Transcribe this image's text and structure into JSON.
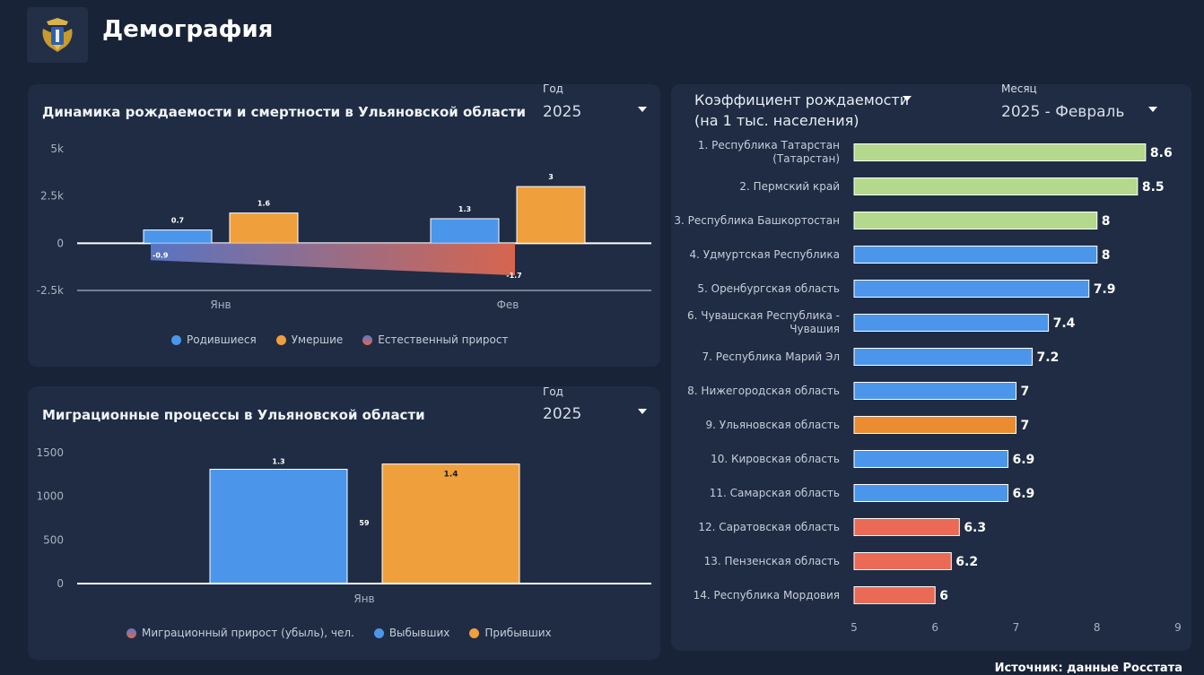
{
  "header": {
    "title": "Демография"
  },
  "colors": {
    "born": "#4b96ea",
    "died": "#efa03c",
    "green": "#b4d88c",
    "blue": "#4b96ea",
    "orange": "#ea8c2f",
    "red": "#ea6a56"
  },
  "panel1": {
    "title": "Динамика рождаемости и смертности в Ульяновской области",
    "filter_label": "Год",
    "filter_value": "2025",
    "legend": [
      "Родившиеся",
      "Умершие",
      "Естественный прирост"
    ],
    "chart_data": {
      "type": "bar",
      "categories": [
        "Янв",
        "Фев"
      ],
      "series": [
        {
          "name": "Родившиеся",
          "values": [
            0.7,
            1.3
          ],
          "labels": [
            "0.7",
            "1.3"
          ]
        },
        {
          "name": "Умершие",
          "values": [
            1.6,
            3.0
          ],
          "labels": [
            "1.6",
            "3"
          ]
        },
        {
          "name": "Естественный прирост",
          "values": [
            -0.9,
            -1.7
          ],
          "labels": [
            "-0.9",
            "-1.7"
          ]
        }
      ],
      "y_ticks": [
        "5k",
        "2.5k",
        "0",
        "-2.5k"
      ],
      "ylim": [
        -2.5,
        5
      ]
    }
  },
  "panel2": {
    "title": "Миграционные процессы в Ульяновской области",
    "filter_label": "Год",
    "filter_value": "2025",
    "legend": [
      "Миграционный прирост (убыль), чел.",
      "Выбывших",
      "Прибывших"
    ],
    "chart_data": {
      "type": "bar",
      "categories": [
        "Янв"
      ],
      "series": [
        {
          "name": "Выбывших",
          "values": [
            1310
          ],
          "labels": [
            "1.3"
          ]
        },
        {
          "name": "Прибывших",
          "values": [
            1370
          ],
          "labels": [
            "1.4"
          ]
        },
        {
          "name": "Миграционный прирост (убыль), чел.",
          "values": [
            59
          ],
          "labels": [
            "59"
          ]
        }
      ],
      "y_ticks": [
        "1500",
        "1000",
        "500",
        "0"
      ],
      "ylim": [
        0,
        1500
      ]
    }
  },
  "panel3": {
    "title_line1": "Коэффициент рождаемости",
    "title_line2": "(на 1 тыс. населения)",
    "filter_label": "Месяц",
    "filter_value": "2025 - Февраль",
    "chart_data": {
      "type": "bar",
      "orientation": "horizontal",
      "x_ticks": [
        "5",
        "6",
        "7",
        "8",
        "9"
      ],
      "xlim": [
        5,
        9
      ],
      "rows": [
        {
          "label": [
            "1. Республика Татарстан",
            "(Татарстан)"
          ],
          "value": 8.6,
          "label_value": "8.6",
          "color": "green"
        },
        {
          "label": [
            "2. Пермский край"
          ],
          "value": 8.5,
          "label_value": "8.5",
          "color": "green"
        },
        {
          "label": [
            "3. Республика Башкортостан"
          ],
          "value": 8.0,
          "label_value": "8",
          "color": "green"
        },
        {
          "label": [
            "4. Удмуртская Республика"
          ],
          "value": 8.0,
          "label_value": "8",
          "color": "blue"
        },
        {
          "label": [
            "5. Оренбургская область"
          ],
          "value": 7.9,
          "label_value": "7.9",
          "color": "blue"
        },
        {
          "label": [
            "6. Чувашская Республика -",
            "Чувашия"
          ],
          "value": 7.4,
          "label_value": "7.4",
          "color": "blue"
        },
        {
          "label": [
            "7. Республика Марий Эл"
          ],
          "value": 7.2,
          "label_value": "7.2",
          "color": "blue"
        },
        {
          "label": [
            "8. Нижегородская область"
          ],
          "value": 7.0,
          "label_value": "7",
          "color": "blue"
        },
        {
          "label": [
            "9. Ульяновская область"
          ],
          "value": 7.0,
          "label_value": "7",
          "color": "orange"
        },
        {
          "label": [
            "10. Кировская область"
          ],
          "value": 6.9,
          "label_value": "6.9",
          "color": "blue"
        },
        {
          "label": [
            "11. Самарская область"
          ],
          "value": 6.9,
          "label_value": "6.9",
          "color": "blue"
        },
        {
          "label": [
            "12. Саратовская область"
          ],
          "value": 6.3,
          "label_value": "6.3",
          "color": "red"
        },
        {
          "label": [
            "13. Пензенская область"
          ],
          "value": 6.2,
          "label_value": "6.2",
          "color": "red"
        },
        {
          "label": [
            "14. Республика Мордовия"
          ],
          "value": 6.0,
          "label_value": "6",
          "color": "red"
        }
      ]
    }
  },
  "footer": {
    "source": "Источник: данные Росстата"
  }
}
